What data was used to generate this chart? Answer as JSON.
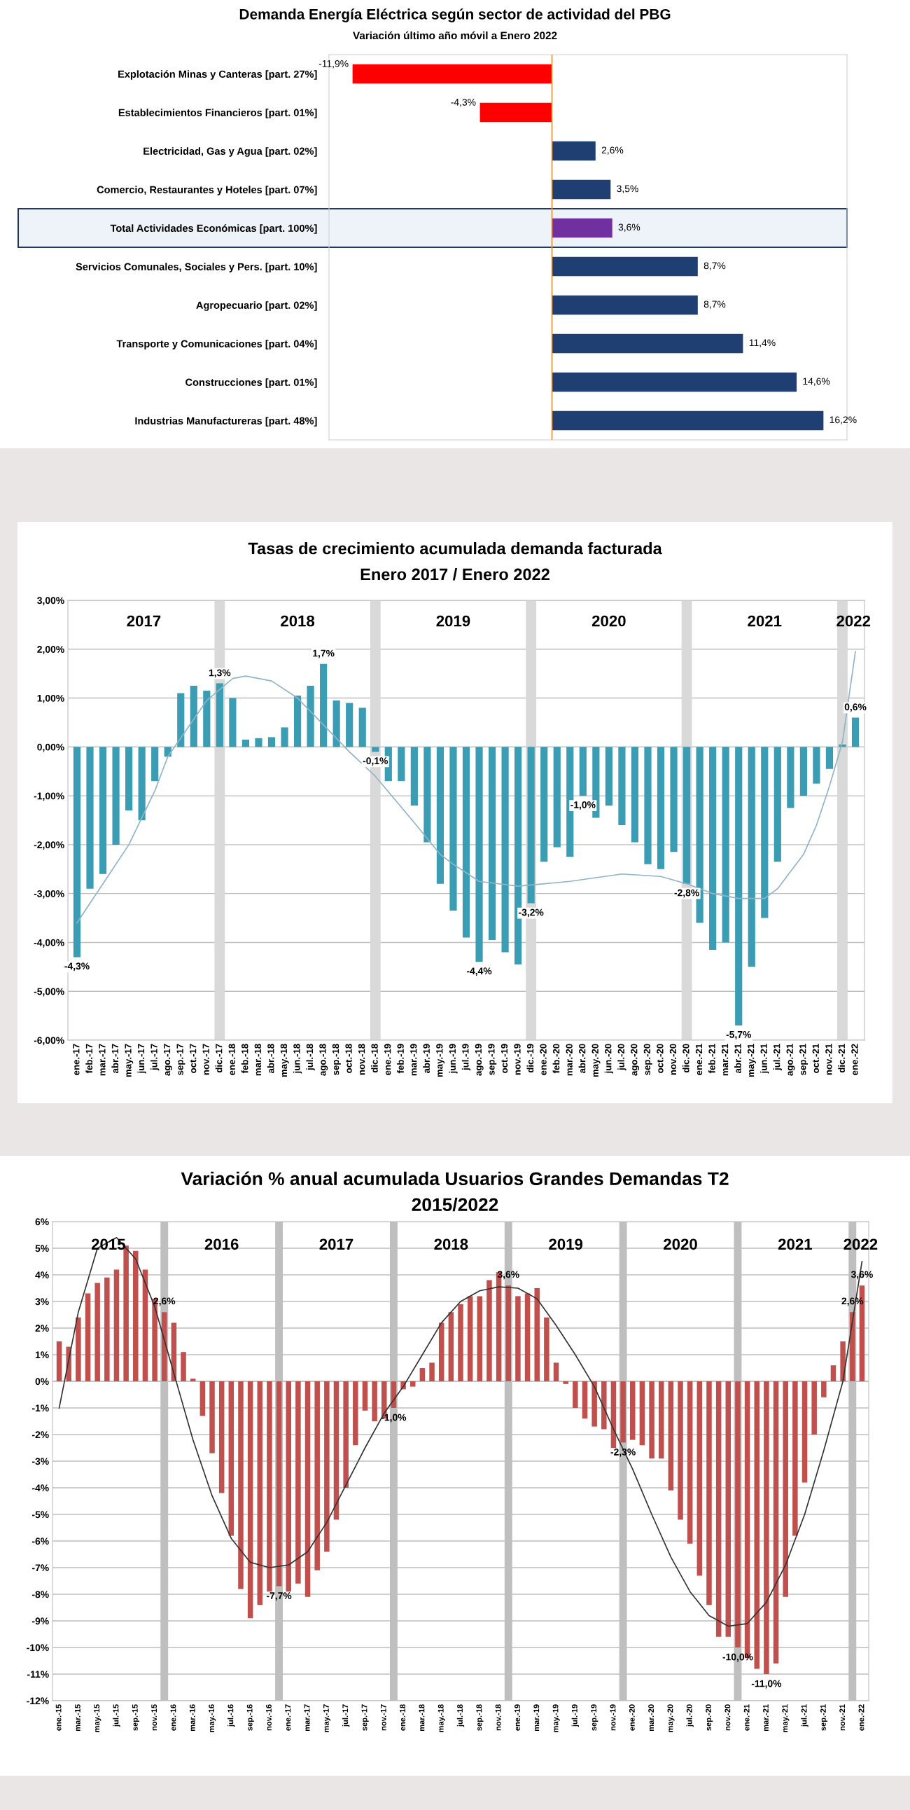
{
  "chart_data": [
    {
      "type": "bar",
      "orientation": "horizontal",
      "title": "Demanda Energía Eléctrica según sector de actividad del PBG",
      "subtitle": "Variación último año móvil a Enero 2022",
      "categories": [
        "Explotación Minas y Canteras [part. 27%]",
        "Establecimientos Financieros [part. 01%]",
        "Electricidad, Gas y Agua [part. 02%]",
        "Comercio, Restaurantes y Hoteles [part. 07%]",
        "Total Actividades Económicas [part. 100%]",
        "Servicios Comunales, Sociales y Pers. [part. 10%]",
        "Agropecuario [part. 02%]",
        "Transporte y Comunicaciones [part. 04%]",
        "Construcciones [part. 01%]",
        "Industrias Manufactureras [part. 48%]"
      ],
      "values": [
        -11.9,
        -4.3,
        2.6,
        3.5,
        3.6,
        8.7,
        8.7,
        11.4,
        14.6,
        16.2
      ],
      "colors": [
        "#ff0000",
        "#ff0000",
        "#1f3f73",
        "#1f3f73",
        "#7030a0",
        "#1f3f73",
        "#1f3f73",
        "#1f3f73",
        "#1f3f73",
        "#1f3f73"
      ],
      "value_labels": [
        "-11,9%",
        "-4,3%",
        "2,6%",
        "3,5%",
        "3,6%",
        "8,7%",
        "8,7%",
        "11,4%",
        "14,6%",
        "16,2%"
      ],
      "ref_lines": [
        {
          "axis": "x",
          "value": 0,
          "color": "#e69138"
        }
      ],
      "bands": [
        {
          "axis": "y",
          "from": "Total Actividades Económicas [part. 100%]",
          "to": "Total Actividades Económicas [part. 100%]",
          "color": "#eef3fa"
        }
      ],
      "tick_labels": "y",
      "grid": false,
      "legend": false
    },
    {
      "type": "bar",
      "title": "Tasas de crecimiento acumulada demanda facturada",
      "subtitle": "Enero 2017 / Enero 2022",
      "categories": [
        "ene.-17",
        "feb.-17",
        "mar.-17",
        "abr.-17",
        "may.-17",
        "jun.-17",
        "jul.-17",
        "ago.-17",
        "sep.-17",
        "oct.-17",
        "nov.-17",
        "dic.-17",
        "ene.-18",
        "feb.-18",
        "mar.-18",
        "abr.-18",
        "may.-18",
        "jun.-18",
        "jul.-18",
        "ago.-18",
        "sep.-18",
        "oct.-18",
        "nov.-18",
        "dic.-18",
        "ene.-19",
        "feb.-19",
        "mar.-19",
        "abr.-19",
        "may.-19",
        "jun.-19",
        "jul.-19",
        "ago.-19",
        "sep.-19",
        "oct.-19",
        "nov.-19",
        "dic.-19",
        "ene.-20",
        "feb.-20",
        "mar.-20",
        "abr.-20",
        "may.-20",
        "jun.-20",
        "jul.-20",
        "ago.-20",
        "sep.-20",
        "oct.-20",
        "nov.-20",
        "dic.-20",
        "ene.-21",
        "feb.-21",
        "mar.-21",
        "abr.-21",
        "may.-21",
        "jun.-21",
        "jul.-21",
        "ago.-21",
        "sep.-21",
        "oct.-21",
        "nov.-21",
        "dic.-21",
        "ene.-22"
      ],
      "series": [
        {
          "type": "bar",
          "color": "#3b9db3",
          "values": [
            -4.3,
            -2.9,
            -2.6,
            -2.0,
            -1.3,
            -1.5,
            -0.7,
            -0.2,
            1.1,
            1.25,
            1.15,
            1.3,
            1.0,
            0.15,
            0.18,
            0.2,
            0.4,
            1.05,
            1.25,
            1.7,
            0.95,
            0.9,
            0.8,
            -0.1,
            -0.7,
            -0.7,
            -1.2,
            -1.95,
            -2.8,
            -3.35,
            -3.9,
            -4.4,
            -3.95,
            -4.2,
            -4.45,
            -3.2,
            -2.35,
            -2.05,
            -2.25,
            -1.0,
            -1.45,
            -1.2,
            -1.6,
            -1.95,
            -2.4,
            -2.5,
            -2.15,
            -2.8,
            -3.6,
            -4.15,
            -4.0,
            -5.7,
            -4.5,
            -3.5,
            -2.35,
            -1.25,
            -1.0,
            -0.75,
            -0.45,
            0.05,
            0.6
          ],
          "value_labels": [
            "-4,3%",
            null,
            null,
            null,
            null,
            null,
            null,
            null,
            null,
            null,
            null,
            "1,3%",
            null,
            null,
            null,
            null,
            null,
            null,
            null,
            "1,7%",
            null,
            null,
            null,
            "-0,1%",
            null,
            null,
            null,
            null,
            null,
            null,
            null,
            "-4,4%",
            null,
            null,
            null,
            "-3,2%",
            null,
            null,
            null,
            "-1,0%",
            null,
            null,
            null,
            null,
            null,
            null,
            null,
            "-2,8%",
            null,
            null,
            null,
            "-5,7%",
            null,
            null,
            null,
            null,
            null,
            null,
            null,
            null,
            "0,6%"
          ]
        },
        {
          "type": "line",
          "color": "#8fb4c9",
          "x": [
            "ene.-17",
            "mar.-17",
            "may.-17",
            "jul.-17",
            "ago.-17",
            "nov.-17",
            "ene.-18",
            "feb.-18",
            "abr.-18",
            "jun.-18",
            "ago.-18",
            "oct.-18",
            "dic.-18",
            "mar.-19",
            "may.-19",
            "jun.-19",
            "ago.-19",
            "nov.-19",
            "mar.-20",
            "jul.-20",
            "oct.-20",
            "dic.-20",
            "feb.-21",
            "abr.-21",
            "jun.-21",
            "jul.-21",
            "sep.-21",
            "oct.-21",
            "nov.-21",
            "dic.-21",
            "ene.-22"
          ],
          "values": [
            -3.6,
            -2.8,
            -2.0,
            -0.9,
            -0.2,
            0.95,
            1.4,
            1.45,
            1.35,
            1.0,
            0.45,
            -0.1,
            -0.6,
            -1.55,
            -2.2,
            -2.4,
            -2.75,
            -2.85,
            -2.75,
            -2.6,
            -2.65,
            -2.8,
            -3.0,
            -3.1,
            -3.1,
            -2.9,
            -2.2,
            -1.6,
            -0.8,
            0.1,
            1.95
          ]
        }
      ],
      "ylim": [
        -6,
        3
      ],
      "yticks": [
        {
          "value": 3,
          "label": "3,00%"
        },
        {
          "value": 2,
          "label": "2,00%"
        },
        {
          "value": 1,
          "label": "1,00%"
        },
        {
          "value": 0,
          "label": "0,00%"
        },
        {
          "value": -1,
          "label": "-1,00%"
        },
        {
          "value": -2,
          "label": "-2,00%"
        },
        {
          "value": -3,
          "label": "-3,00%"
        },
        {
          "value": -4,
          "label": "-4,00%"
        },
        {
          "value": -5,
          "label": "-5,00%"
        },
        {
          "value": -6,
          "label": "-6,00%"
        }
      ],
      "bands": [
        {
          "axis": "x",
          "from": "nov.-17",
          "to": "ene.-18",
          "color": "#d9d9d9"
        },
        {
          "axis": "x",
          "from": "nov.-18",
          "to": "ene.-19",
          "color": "#d9d9d9"
        },
        {
          "axis": "x",
          "from": "nov.-19",
          "to": "ene.-20",
          "color": "#d9d9d9"
        },
        {
          "axis": "x",
          "from": "nov.-20",
          "to": "ene.-21",
          "color": "#d9d9d9"
        },
        {
          "axis": "x",
          "from": "nov.-21",
          "to": "ene.-22",
          "color": "#d9d9d9"
        }
      ],
      "annotations": [
        "2017",
        "2018",
        "2019",
        "2020",
        "2021",
        "2022"
      ],
      "grid": "y",
      "legend": false
    },
    {
      "type": "bar",
      "title": "Variación % anual acumulada Usuarios Grandes Demandas T2",
      "subtitle": "2015/2022",
      "categories": [
        "ene.-15",
        null,
        "mar.-15",
        null,
        "may.-15",
        null,
        "jul.-15",
        null,
        "sep.-15",
        null,
        "nov.-15",
        null,
        "ene.-16",
        null,
        "mar.-16",
        null,
        "may.-16",
        null,
        "jul.-16",
        null,
        "sep.-16",
        null,
        "nov.-16",
        null,
        "ene.-17",
        null,
        "mar.-17",
        null,
        "may.-17",
        null,
        "jul.-17",
        null,
        "sep.-17",
        null,
        "nov.-17",
        null,
        "ene.-18",
        null,
        "mar.-18",
        null,
        "may.-18",
        null,
        "jul.-18",
        null,
        "sep.-18",
        null,
        "nov.-18",
        null,
        "ene.-19",
        null,
        "mar.-19",
        null,
        "may.-19",
        null,
        "jul.-19",
        null,
        "sep.-19",
        null,
        "nov.-19",
        null,
        "ene.-20",
        null,
        "mar.-20",
        null,
        "may.-20",
        null,
        "jul.-20",
        null,
        "sep.-20",
        null,
        "nov.-20",
        null,
        "ene.-21",
        null,
        "mar.-21",
        null,
        "may.-21",
        null,
        "jul.-21",
        null,
        "sep.-21",
        null,
        "nov.-21",
        null,
        "ene.-22"
      ],
      "series": [
        {
          "type": "bar",
          "color": "#c0504d",
          "values": [
            1.5,
            1.3,
            2.4,
            3.3,
            3.7,
            3.9,
            4.2,
            5.1,
            4.9,
            4.2,
            3.1,
            2.6,
            2.2,
            1.1,
            0.1,
            -1.3,
            -2.7,
            -4.2,
            -5.8,
            -7.8,
            -8.9,
            -8.4,
            -7.9,
            -7.7,
            -7.9,
            -7.6,
            -8.1,
            -7.1,
            -6.4,
            -5.2,
            -4.0,
            -2.4,
            -1.1,
            -1.5,
            -1.4,
            -1.0,
            -0.3,
            -0.2,
            0.5,
            0.7,
            2.2,
            2.6,
            2.9,
            3.2,
            3.2,
            3.8,
            4.1,
            3.6,
            3.2,
            3.3,
            3.5,
            2.4,
            0.7,
            -0.1,
            -1.0,
            -1.4,
            -1.7,
            -1.8,
            -2.5,
            -2.3,
            -2.2,
            -2.4,
            -2.9,
            -2.9,
            -4.1,
            -5.2,
            -6.1,
            -7.3,
            -8.4,
            -9.6,
            -9.6,
            -10.0,
            -10.4,
            -10.8,
            -11.0,
            -10.6,
            -8.1,
            -5.8,
            -3.8,
            -2.0,
            -0.6,
            0.6,
            1.5,
            2.6,
            3.6
          ],
          "value_labels": [
            null,
            null,
            null,
            null,
            null,
            null,
            null,
            null,
            null,
            null,
            null,
            "2,6%",
            null,
            null,
            null,
            null,
            null,
            null,
            null,
            null,
            null,
            null,
            null,
            "-7,7%",
            null,
            null,
            null,
            null,
            null,
            null,
            null,
            null,
            null,
            null,
            null,
            "-1,0%",
            null,
            null,
            null,
            null,
            null,
            null,
            null,
            null,
            null,
            null,
            null,
            "3,6%",
            null,
            null,
            null,
            null,
            null,
            null,
            null,
            null,
            null,
            null,
            null,
            "-2,3%",
            null,
            null,
            null,
            null,
            null,
            null,
            null,
            null,
            null,
            null,
            null,
            "-10,0%",
            null,
            null,
            "-11,0%",
            null,
            null,
            null,
            null,
            null,
            null,
            null,
            null,
            "2,6%",
            "3,6%"
          ]
        },
        {
          "type": "line",
          "color": "#333333",
          "x": [
            "ene.-15",
            "mar.-15",
            "may.-15",
            "jul.-15",
            "sep.-15",
            "nov.-15",
            "ene.-16",
            "mar.-16",
            "may.-16",
            "jul.-16",
            "sep.-16",
            "nov.-16",
            "ene.-17",
            "mar.-17",
            "may.-17",
            "jul.-17",
            "sep.-17",
            "nov.-17",
            "ene.-18",
            "mar.-18",
            "may.-18",
            "jul.-18",
            "sep.-18",
            "nov.-18",
            "ene.-19",
            "mar.-19",
            "may.-19",
            "jul.-19",
            "sep.-19",
            "nov.-19",
            "ene.-20",
            "mar.-20",
            "may.-20",
            "jul.-20",
            "sep.-20",
            "nov.-20",
            "ene.-21",
            "mar.-21",
            "may.-21",
            "jul.-21",
            "sep.-21",
            "nov.-21",
            "ene.-22"
          ],
          "values": [
            -1.0,
            2.6,
            5.0,
            5.4,
            4.6,
            2.8,
            0.3,
            -2.2,
            -4.3,
            -5.9,
            -6.8,
            -7.0,
            -6.9,
            -6.4,
            -5.3,
            -3.9,
            -2.5,
            -1.2,
            -0.2,
            1.0,
            2.2,
            3.0,
            3.4,
            3.55,
            3.5,
            3.1,
            2.1,
            1.0,
            -0.2,
            -1.8,
            -3.3,
            -5.0,
            -6.6,
            -7.9,
            -8.8,
            -9.2,
            -9.1,
            -8.3,
            -6.9,
            -5.0,
            -2.6,
            0.0,
            4.5
          ]
        }
      ],
      "ylim": [
        -12,
        6
      ],
      "yticks": [
        {
          "value": 6,
          "label": "6%"
        },
        {
          "value": 5,
          "label": "5%"
        },
        {
          "value": 4,
          "label": "4%"
        },
        {
          "value": 3,
          "label": "3%"
        },
        {
          "value": 2,
          "label": "2%"
        },
        {
          "value": 1,
          "label": "1%"
        },
        {
          "value": 0,
          "label": "0%"
        },
        {
          "value": -1,
          "label": "-1%"
        },
        {
          "value": -2,
          "label": "-2%"
        },
        {
          "value": -3,
          "label": "-3%"
        },
        {
          "value": -4,
          "label": "-4%"
        },
        {
          "value": -5,
          "label": "-5%"
        },
        {
          "value": -6,
          "label": "-6%"
        },
        {
          "value": -7,
          "label": "-7%"
        },
        {
          "value": -8,
          "label": "-8%"
        },
        {
          "value": -9,
          "label": "-9%"
        },
        {
          "value": -10,
          "label": "-10%"
        },
        {
          "value": -11,
          "label": "-11%"
        },
        {
          "value": -12,
          "label": "-12%"
        }
      ],
      "bands": [
        {
          "axis": "x",
          "from": "nov.-15",
          "to": "ene.-16",
          "color": "#bfbfbf"
        },
        {
          "axis": "x",
          "from": "nov.-16",
          "to": "ene.-17",
          "color": "#bfbfbf"
        },
        {
          "axis": "x",
          "from": "nov.-17",
          "to": "ene.-18",
          "color": "#bfbfbf"
        },
        {
          "axis": "x",
          "from": "nov.-18",
          "to": "ene.-19",
          "color": "#bfbfbf"
        },
        {
          "axis": "x",
          "from": "nov.-19",
          "to": "ene.-20",
          "color": "#bfbfbf"
        },
        {
          "axis": "x",
          "from": "nov.-20",
          "to": "ene.-21",
          "color": "#bfbfbf"
        },
        {
          "axis": "x",
          "from": "nov.-21",
          "to": "ene.-22",
          "color": "#bfbfbf"
        }
      ],
      "annotations": [
        "2015",
        "2016",
        "2017",
        "2018",
        "2019",
        "2020",
        "2021",
        "2022"
      ],
      "grid": "y",
      "legend": false
    }
  ]
}
